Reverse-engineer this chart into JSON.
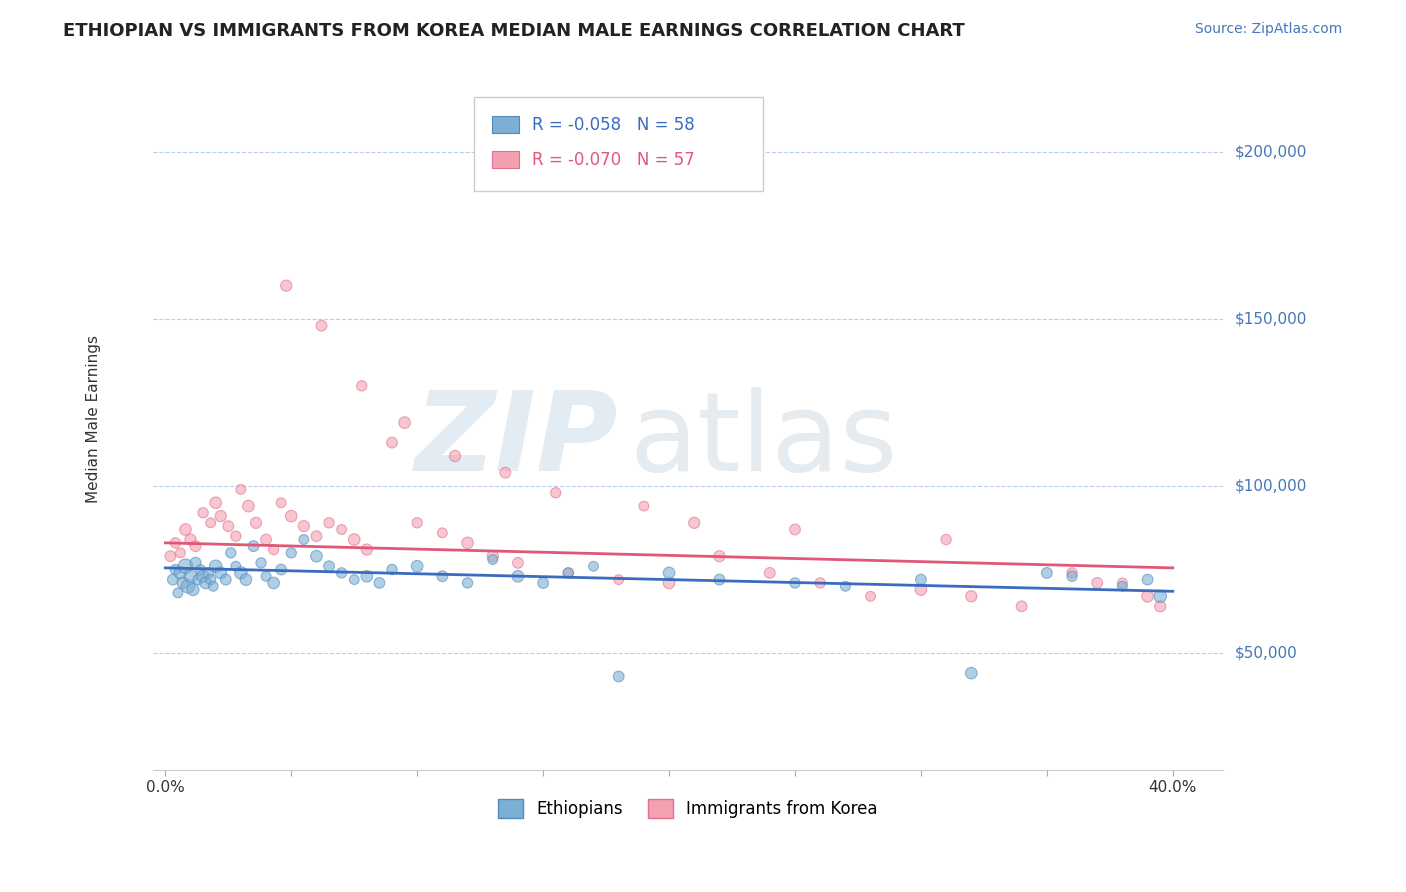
{
  "title": "ETHIOPIAN VS IMMIGRANTS FROM KOREA MEDIAN MALE EARNINGS CORRELATION CHART",
  "source_text": "Source: ZipAtlas.com",
  "ylabel": "Median Male Earnings",
  "xlim": [
    -0.005,
    0.42
  ],
  "ylim": [
    15000,
    225000
  ],
  "yticks": [
    50000,
    100000,
    150000,
    200000
  ],
  "ytick_labels": [
    "$50,000",
    "$100,000",
    "$150,000",
    "$200,000"
  ],
  "xticks": [
    0.0,
    0.05,
    0.1,
    0.15,
    0.2,
    0.25,
    0.3,
    0.35,
    0.4
  ],
  "xtick_labels": [
    "0.0%",
    "",
    "",
    "",
    "",
    "",
    "",
    "",
    "40.0%"
  ],
  "blue_color": "#7BAFD4",
  "pink_color": "#F4A0B0",
  "blue_edge_color": "#5588BB",
  "pink_edge_color": "#E07090",
  "blue_line_color": "#3A6BBF",
  "pink_line_color": "#E05878",
  "axis_label_color": "#4477BB",
  "R_blue": -0.058,
  "N_blue": 58,
  "R_pink": -0.07,
  "N_pink": 57,
  "watermark_zip": "ZIP",
  "watermark_atlas": "atlas",
  "legend_label_blue": "Ethiopians",
  "legend_label_pink": "Immigrants from Korea",
  "blue_scatter_x": [
    0.003,
    0.004,
    0.005,
    0.006,
    0.007,
    0.008,
    0.009,
    0.01,
    0.011,
    0.012,
    0.013,
    0.014,
    0.015,
    0.016,
    0.017,
    0.018,
    0.019,
    0.02,
    0.022,
    0.024,
    0.026,
    0.028,
    0.03,
    0.032,
    0.035,
    0.038,
    0.04,
    0.043,
    0.046,
    0.05,
    0.055,
    0.06,
    0.065,
    0.07,
    0.075,
    0.08,
    0.085,
    0.09,
    0.1,
    0.11,
    0.12,
    0.13,
    0.14,
    0.15,
    0.16,
    0.17,
    0.18,
    0.2,
    0.22,
    0.25,
    0.27,
    0.3,
    0.32,
    0.35,
    0.36,
    0.38,
    0.39,
    0.395
  ],
  "blue_scatter_y": [
    72000,
    75000,
    68000,
    74000,
    71000,
    76000,
    70000,
    73000,
    69000,
    77000,
    72000,
    75000,
    73000,
    71000,
    74000,
    72000,
    70000,
    76000,
    74000,
    72000,
    80000,
    76000,
    74000,
    72000,
    82000,
    77000,
    73000,
    71000,
    75000,
    80000,
    84000,
    79000,
    76000,
    74000,
    72000,
    73000,
    71000,
    75000,
    76000,
    73000,
    71000,
    78000,
    73000,
    71000,
    74000,
    76000,
    43000,
    74000,
    72000,
    71000,
    70000,
    72000,
    44000,
    74000,
    73000,
    70000,
    72000,
    67000
  ],
  "blue_scatter_sizes": [
    60,
    55,
    50,
    80,
    70,
    110,
    95,
    85,
    75,
    65,
    55,
    50,
    80,
    70,
    60,
    55,
    50,
    80,
    70,
    60,
    55,
    50,
    80,
    70,
    60,
    55,
    50,
    70,
    60,
    55,
    50,
    70,
    60,
    55,
    50,
    70,
    60,
    55,
    70,
    60,
    55,
    50,
    70,
    60,
    55,
    50,
    60,
    70,
    60,
    55,
    50,
    60,
    70,
    60,
    55,
    50,
    60,
    80
  ],
  "pink_scatter_x": [
    0.002,
    0.004,
    0.006,
    0.008,
    0.01,
    0.012,
    0.015,
    0.018,
    0.02,
    0.022,
    0.025,
    0.028,
    0.03,
    0.033,
    0.036,
    0.04,
    0.043,
    0.046,
    0.05,
    0.055,
    0.06,
    0.065,
    0.07,
    0.075,
    0.08,
    0.09,
    0.1,
    0.11,
    0.12,
    0.13,
    0.14,
    0.16,
    0.18,
    0.2,
    0.22,
    0.24,
    0.26,
    0.28,
    0.3,
    0.32,
    0.34,
    0.36,
    0.38,
    0.39,
    0.395,
    0.048,
    0.062,
    0.078,
    0.095,
    0.115,
    0.135,
    0.155,
    0.19,
    0.21,
    0.25,
    0.31,
    0.37
  ],
  "pink_scatter_y": [
    79000,
    83000,
    80000,
    87000,
    84000,
    82000,
    92000,
    89000,
    95000,
    91000,
    88000,
    85000,
    99000,
    94000,
    89000,
    84000,
    81000,
    95000,
    91000,
    88000,
    85000,
    89000,
    87000,
    84000,
    81000,
    113000,
    89000,
    86000,
    83000,
    79000,
    77000,
    74000,
    72000,
    71000,
    79000,
    74000,
    71000,
    67000,
    69000,
    67000,
    64000,
    74000,
    71000,
    67000,
    64000,
    160000,
    148000,
    130000,
    119000,
    109000,
    104000,
    98000,
    94000,
    89000,
    87000,
    84000,
    71000
  ],
  "pink_scatter_sizes": [
    60,
    55,
    50,
    70,
    65,
    60,
    55,
    50,
    70,
    65,
    60,
    55,
    50,
    70,
    65,
    60,
    55,
    50,
    70,
    65,
    60,
    55,
    50,
    70,
    65,
    60,
    55,
    50,
    70,
    65,
    60,
    55,
    50,
    70,
    65,
    60,
    55,
    50,
    70,
    65,
    60,
    55,
    50,
    70,
    65,
    65,
    60,
    55,
    70,
    65,
    60,
    55,
    50,
    65,
    60,
    55,
    60
  ],
  "blue_line_x0": 0.0,
  "blue_line_x1": 0.4,
  "blue_line_y0": 75500,
  "blue_line_y1": 68500,
  "pink_line_x0": 0.0,
  "pink_line_x1": 0.4,
  "pink_line_y0": 83000,
  "pink_line_y1": 75500
}
